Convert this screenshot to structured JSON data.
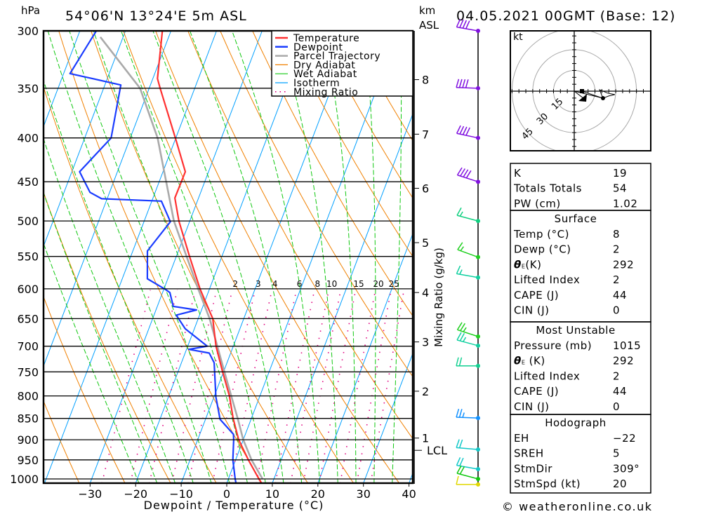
{
  "chart_data": {
    "type": "skew-t",
    "title": "54°06'N 13°24'E 5m ASL",
    "date": "04.05.2021 00GMT (Base: 12)",
    "ylabel": "hPa",
    "xlabel": "Dewpoint / Temperature (°C)",
    "km_label": "km",
    "asl_label": "ASL",
    "mixing_ratio_axis_label": "Mixing Ratio (g/kg)",
    "xlim": [
      -40,
      41
    ],
    "ylim": [
      1010,
      300
    ],
    "pressure_ticks": [
      "300",
      "350",
      "400",
      "450",
      "500",
      "550",
      "600",
      "650",
      "700",
      "750",
      "800",
      "850",
      "900",
      "950",
      "1000"
    ],
    "pressure_values": [
      300,
      350,
      400,
      450,
      500,
      550,
      600,
      650,
      700,
      750,
      800,
      850,
      900,
      950,
      1000
    ],
    "temperature_ticks": [
      "−30",
      "−20",
      "−10",
      "0",
      "10",
      "20",
      "30",
      "40"
    ],
    "temperature_values": [
      -30,
      -20,
      -10,
      0,
      10,
      20,
      30,
      40
    ],
    "km_ticks": [
      {
        "label": "1",
        "p": 896
      },
      {
        "label": "2",
        "p": 790
      },
      {
        "label": "3",
        "p": 692
      },
      {
        "label": "4",
        "p": 606
      },
      {
        "label": "5",
        "p": 530
      },
      {
        "label": "6",
        "p": 458
      },
      {
        "label": "7",
        "p": 396
      },
      {
        "label": "8",
        "p": 342
      },
      {
        "label": "LCL",
        "p": 926
      }
    ],
    "legend": [
      {
        "label": "Temperature",
        "color": "#ff3030",
        "style": "solid"
      },
      {
        "label": "Dewpoint",
        "color": "#1a3cff",
        "style": "solid"
      },
      {
        "label": "Parcel Trajectory",
        "color": "#aaaaaa",
        "style": "solid"
      },
      {
        "label": "Dry Adiabat",
        "color": "#f08000",
        "style": "thin"
      },
      {
        "label": "Wet Adiabat",
        "color": "#10c810",
        "style": "thin"
      },
      {
        "label": "Isotherm",
        "color": "#00a0ff",
        "style": "thin"
      },
      {
        "label": "Mixing Ratio",
        "color": "#e0007f",
        "style": "dotted"
      }
    ],
    "series": [
      {
        "name": "Temperature",
        "color": "#ff3030",
        "points": [
          [
            1015,
            7.9
          ],
          [
            1000,
            6.7
          ],
          [
            950,
            2.8
          ],
          [
            900,
            -1.0
          ],
          [
            850,
            -4.0
          ],
          [
            800,
            -6.7
          ],
          [
            750,
            -10.2
          ],
          [
            700,
            -13.8
          ],
          [
            650,
            -16.8
          ],
          [
            600,
            -22.1
          ],
          [
            550,
            -27.1
          ],
          [
            500,
            -32.4
          ],
          [
            470,
            -35.2
          ],
          [
            438,
            -35.1
          ],
          [
            400,
            -40.1
          ],
          [
            350,
            -47.6
          ],
          [
            341,
            -49.0
          ],
          [
            300,
            -51.9
          ]
        ]
      },
      {
        "name": "Dewpoint",
        "color": "#1a3cff",
        "points": [
          [
            1015,
            2.2
          ],
          [
            1000,
            1.5
          ],
          [
            950,
            -0.6
          ],
          [
            900,
            -2.1
          ],
          [
            887,
            -2.6
          ],
          [
            852,
            -6.8
          ],
          [
            802,
            -9.6
          ],
          [
            732,
            -12.8
          ],
          [
            713,
            -14.7
          ],
          [
            706,
            -19.5
          ],
          [
            700,
            -15.7
          ],
          [
            668,
            -22.0
          ],
          [
            644,
            -25.1
          ],
          [
            635,
            -21.1
          ],
          [
            629,
            -26.5
          ],
          [
            606,
            -28.4
          ],
          [
            600,
            -29.9
          ],
          [
            584,
            -34.5
          ],
          [
            542,
            -36.8
          ],
          [
            537,
            -36.5
          ],
          [
            501,
            -34.2
          ],
          [
            474,
            -37.9
          ],
          [
            471,
            -51.2
          ],
          [
            463,
            -54.3
          ],
          [
            438,
            -58.3
          ],
          [
            400,
            -54.2
          ],
          [
            347,
            -56.5
          ],
          [
            336.5,
            -68.6
          ],
          [
            300,
            -66.4
          ]
        ]
      },
      {
        "name": "Parcel Trajectory",
        "color": "#aaaaaa",
        "points": [
          [
            1000,
            7.5
          ],
          [
            950,
            3.5
          ],
          [
            900,
            0.0
          ],
          [
            850,
            -3.0
          ],
          [
            800,
            -6.3
          ],
          [
            750,
            -9.8
          ],
          [
            700,
            -13.5
          ],
          [
            650,
            -17.5
          ],
          [
            600,
            -22.5
          ],
          [
            500,
            -33.5
          ],
          [
            400,
            -44.0
          ],
          [
            350,
            -52.0
          ],
          [
            305,
            -65.0
          ]
        ]
      }
    ],
    "dry_adiabats_theta_K": [
      230,
      240,
      250,
      260,
      270,
      280,
      290,
      300,
      310,
      320,
      330,
      340,
      350,
      360,
      370,
      380,
      390,
      400,
      410,
      420,
      430,
      440,
      450,
      460,
      470
    ],
    "wet_adiabats_thetaw_C": [
      -20,
      -16,
      -12,
      -8,
      -4,
      0,
      4,
      8,
      12,
      16,
      20,
      24,
      28,
      32,
      36
    ],
    "mixing_ratios_gkg": [
      0.4,
      0.7,
      1,
      1.5,
      2,
      3,
      4,
      6,
      8,
      10,
      12,
      15,
      20,
      25,
      30
    ],
    "mixing_ratio_labels": [
      "2",
      "3",
      "4",
      "6",
      "8",
      "10",
      "15",
      "20",
      "25"
    ],
    "mixing_ratio_label_values": [
      2,
      3,
      4,
      6,
      8,
      10,
      15,
      20,
      25
    ],
    "mixing_ratio_label_color": "#e0007f",
    "wind_barbs": [
      {
        "p": 300,
        "dir": 280,
        "speed_kt": 40,
        "color": "#8010e0"
      },
      {
        "p": 350,
        "dir": 272,
        "speed_kt": 40,
        "color": "#8010e0"
      },
      {
        "p": 400,
        "dir": 282,
        "speed_kt": 40,
        "color": "#8010e0"
      },
      {
        "p": 450,
        "dir": 288,
        "speed_kt": 40,
        "color": "#8010e0"
      },
      {
        "p": 500,
        "dir": 285,
        "speed_kt": 15,
        "color": "#10d080"
      },
      {
        "p": 551,
        "dir": 290,
        "speed_kt": 15,
        "color": "#20d020"
      },
      {
        "p": 582,
        "dir": 280,
        "speed_kt": 15,
        "color": "#10d0a0"
      },
      {
        "p": 682,
        "dir": 288,
        "speed_kt": 25,
        "color": "#20d020"
      },
      {
        "p": 699,
        "dir": 285,
        "speed_kt": 25,
        "color": "#10d0a0"
      },
      {
        "p": 738,
        "dir": 270,
        "speed_kt": 20,
        "color": "#10d090"
      },
      {
        "p": 849,
        "dir": 272,
        "speed_kt": 25,
        "color": "#1090ff"
      },
      {
        "p": 924,
        "dir": 275,
        "speed_kt": 20,
        "color": "#10c8c8"
      },
      {
        "p": 974,
        "dir": 280,
        "speed_kt": 20,
        "color": "#10c8c8"
      },
      {
        "p": 1000,
        "dir": 285,
        "speed_kt": 20,
        "color": "#10c810"
      },
      {
        "p": 1015,
        "dir": 270,
        "speed_kt": 10,
        "color": "#e0d800"
      }
    ],
    "hodograph": {
      "unit": "kt",
      "rings": [
        15,
        30,
        45
      ],
      "ring_labels": [
        "15",
        "30",
        "45"
      ],
      "trace": [
        [
          5.6,
          0
        ],
        [
          20.8,
          -5.1
        ],
        [
          18.3,
          1
        ],
        [
          24.4,
          -1.5
        ],
        [
          29.4,
          -2.5
        ],
        [
          24.9,
          -3.5
        ],
        [
          20.8,
          -5.1
        ]
      ],
      "storm_motion": [
        6.6,
        -5.1
      ]
    }
  },
  "indices": {
    "general": [
      {
        "label": "K",
        "value": "19"
      },
      {
        "label": "Totals Totals",
        "value": "54"
      },
      {
        "label": "PW (cm)",
        "value": "1.02"
      }
    ],
    "surface": {
      "title": "Surface",
      "rows": [
        {
          "label": "Temp (°C)",
          "value": "8"
        },
        {
          "label": "Dewp (°C)",
          "value": "2"
        },
        {
          "sym": "θ",
          "sub": "E",
          "label": "(K)",
          "value": "292"
        },
        {
          "label": "Lifted Index",
          "value": "2"
        },
        {
          "label": "CAPE (J)",
          "value": "44"
        },
        {
          "label": "CIN (J)",
          "value": "0"
        }
      ]
    },
    "most_unstable": {
      "title": "Most Unstable",
      "rows": [
        {
          "label": "Pressure (mb)",
          "value": "1015"
        },
        {
          "sym": "θ",
          "sub": "E",
          "label": " (K)",
          "value": "292"
        },
        {
          "label": "Lifted Index",
          "value": "2"
        },
        {
          "label": "CAPE (J)",
          "value": "44"
        },
        {
          "label": "CIN (J)",
          "value": "0"
        }
      ]
    },
    "hodograph": {
      "title": "Hodograph",
      "rows": [
        {
          "label": "EH",
          "value": "−22"
        },
        {
          "label": "SREH",
          "value": "5"
        },
        {
          "label": "StmDir",
          "value": "309°"
        },
        {
          "label": "StmSpd (kt)",
          "value": "20"
        }
      ]
    }
  },
  "footer": "© weatheronline.co.uk"
}
